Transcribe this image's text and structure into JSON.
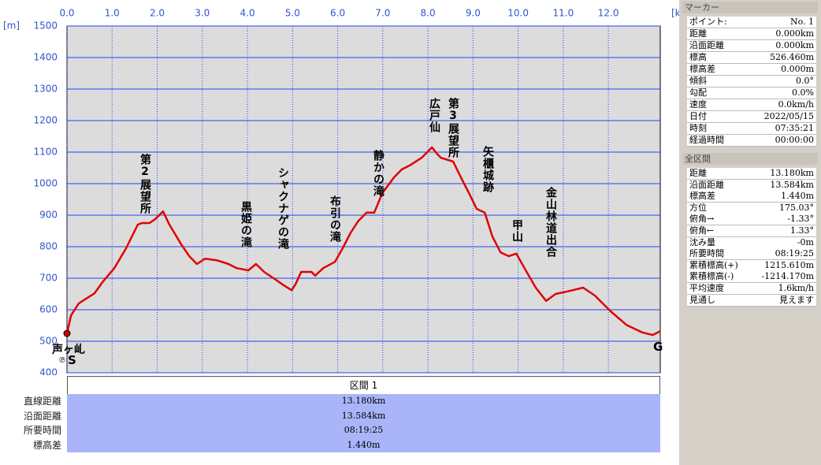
{
  "chart_data": {
    "type": "line",
    "x_unit": "[km]",
    "y_unit": "[m]",
    "x": [
      0,
      0.09,
      0.26,
      0.61,
      0.79,
      1.05,
      1.31,
      1.57,
      1.66,
      1.83,
      1.96,
      2.13,
      2.27,
      2.53,
      2.71,
      2.88,
      3.06,
      3.32,
      3.58,
      3.76,
      4.02,
      4.19,
      4.37,
      4.63,
      4.8,
      4.98,
      5.07,
      5.19,
      5.42,
      5.5,
      5.68,
      5.94,
      6.11,
      6.29,
      6.46,
      6.64,
      6.81,
      6.99,
      7.25,
      7.42,
      7.6,
      7.86,
      8.09,
      8.2,
      8.29,
      8.56,
      8.73,
      8.91,
      9.08,
      9.26,
      9.43,
      9.61,
      9.79,
      9.96,
      10.14,
      10.39,
      10.62,
      10.83,
      11.09,
      11.44,
      11.7,
      12.05,
      12.4,
      12.75,
      12.98,
      13.15
    ],
    "series": [
      {
        "color": "#e00000",
        "values": [
          525,
          582,
          620,
          652,
          688,
          732,
          795,
          870,
          875,
          875,
          888,
          912,
          870,
          808,
          770,
          745,
          762,
          757,
          745,
          732,
          725,
          745,
          720,
          695,
          678,
          662,
          682,
          720,
          720,
          708,
          732,
          752,
          795,
          845,
          882,
          908,
          908,
          970,
          1020,
          1045,
          1058,
          1082,
          1115,
          1095,
          1082,
          1070,
          1020,
          970,
          920,
          908,
          832,
          782,
          770,
          778,
          732,
          670,
          628,
          650,
          658,
          670,
          645,
          595,
          552,
          528,
          520,
          532
        ]
      }
    ],
    "xlim": [
      0,
      13.15
    ],
    "ylim": [
      400,
      1500
    ],
    "xticks": [
      {
        "value": 0,
        "label": "0.0"
      },
      {
        "value": 1,
        "label": "1.0"
      },
      {
        "value": 2,
        "label": "2.0"
      },
      {
        "value": 3,
        "label": "3.0"
      },
      {
        "value": 4,
        "label": "4.0"
      },
      {
        "value": 5,
        "label": "5.0"
      },
      {
        "value": 6,
        "label": "6.0"
      },
      {
        "value": 7,
        "label": "7.0"
      },
      {
        "value": 8,
        "label": "8.0"
      },
      {
        "value": 9,
        "label": "9.0"
      },
      {
        "value": 10,
        "label": "10.0"
      },
      {
        "value": 11,
        "label": "11.0"
      },
      {
        "value": 12,
        "label": "12.0"
      }
    ],
    "yticks": [
      400,
      500,
      600,
      700,
      800,
      900,
      1000,
      1100,
      1200,
      1300,
      1400,
      1500
    ],
    "grid": true,
    "annotations": [
      "第2展望所",
      "黒姫の滝",
      "シャクナゲの滝",
      "布引の滝",
      "静かの滝",
      "広戸仙",
      "第3展望所",
      "矢櫃城跡",
      "甲山",
      "金山林道出合"
    ],
    "start_name": "声ヶ乢",
    "parking": "℗",
    "start": "S",
    "goal": "G"
  },
  "marker_panel": {
    "title": "マーカー",
    "rows": [
      [
        "ポイント:",
        "No. 1"
      ],
      [
        "距離",
        "0.000km"
      ],
      [
        "沿面距離",
        "0.000km"
      ],
      [
        "標高",
        "526.460m"
      ],
      [
        "標高差",
        "0.000m"
      ],
      [
        "傾斜",
        "0.0°"
      ],
      [
        "勾配",
        "0.0%"
      ],
      [
        "速度",
        "0.0km/h"
      ],
      [
        "日付",
        "2022/05/15"
      ],
      [
        "時刻",
        "07:35:21"
      ],
      [
        "経過時間",
        "00:00:00"
      ]
    ]
  },
  "total_panel": {
    "title": "全区間",
    "rows": [
      [
        "距離",
        "13.180km"
      ],
      [
        "沿面距離",
        "13.584km"
      ],
      [
        "標高差",
        "1.440m"
      ],
      [
        "方位",
        "175.03°"
      ],
      [
        "俯角→",
        "-1.33°"
      ],
      [
        "俯角←",
        "1.33°"
      ],
      [
        "沈み量",
        "-0m"
      ],
      [
        "所要時間",
        "08:19:25"
      ],
      [
        "累積標高(+)",
        "1215.610m"
      ],
      [
        "累積標高(-)",
        "-1214.170m"
      ],
      [
        "平均速度",
        "1.6km/h"
      ],
      [
        "見通し",
        "見えます"
      ]
    ]
  },
  "section_table": {
    "header": "区間 1",
    "rows": [
      [
        "直線距離",
        "13.180km"
      ],
      [
        "沿面距離",
        "13.584km"
      ],
      [
        "所要時間",
        "08:19:25"
      ],
      [
        "標高差",
        "1.440m"
      ]
    ]
  }
}
